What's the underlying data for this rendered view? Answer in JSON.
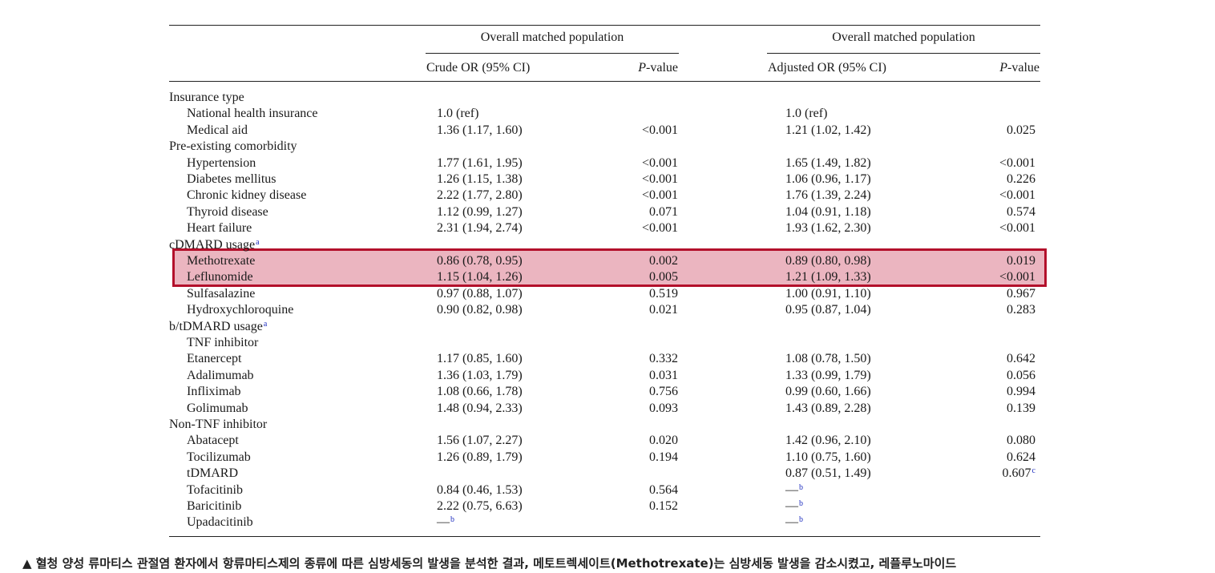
{
  "table": {
    "group_header_left": "Overall matched population",
    "group_header_right": "Overall matched population",
    "col_crude": "Crude OR (95% CI)",
    "col_p_prefix": "P",
    "col_p_suffix": "-value",
    "col_adjusted": "Adjusted OR (95% CI)",
    "rows": [
      {
        "label": "Insurance type",
        "indent": false,
        "crude": "",
        "p1": "",
        "adj": "",
        "p2": ""
      },
      {
        "label": "National health insurance",
        "indent": true,
        "crude": "1.0 (ref)",
        "p1": "",
        "adj": "1.0 (ref)",
        "p2": ""
      },
      {
        "label": "Medical aid",
        "indent": true,
        "crude": "1.36 (1.17, 1.60)",
        "p1": "<0.001",
        "adj": "1.21 (1.02, 1.42)",
        "p2": "0.025"
      },
      {
        "label": "Pre-existing comorbidity",
        "indent": false,
        "crude": "",
        "p1": "",
        "adj": "",
        "p2": ""
      },
      {
        "label": "Hypertension",
        "indent": true,
        "crude": "1.77 (1.61, 1.95)",
        "p1": "<0.001",
        "adj": "1.65 (1.49, 1.82)",
        "p2": "<0.001"
      },
      {
        "label": "Diabetes mellitus",
        "indent": true,
        "crude": "1.26 (1.15, 1.38)",
        "p1": "<0.001",
        "adj": "1.06 (0.96, 1.17)",
        "p2": "0.226"
      },
      {
        "label": "Chronic kidney disease",
        "indent": true,
        "crude": "2.22 (1.77, 2.80)",
        "p1": "<0.001",
        "adj": "1.76 (1.39, 2.24)",
        "p2": "<0.001"
      },
      {
        "label": "Thyroid disease",
        "indent": true,
        "crude": "1.12 (0.99, 1.27)",
        "p1": "0.071",
        "adj": "1.04 (0.91, 1.18)",
        "p2": "0.574"
      },
      {
        "label": "Heart failure",
        "indent": true,
        "crude": "2.31 (1.94, 2.74)",
        "p1": "<0.001",
        "adj": "1.93 (1.62, 2.30)",
        "p2": "<0.001"
      },
      {
        "label": "cDMARD usage",
        "sup": "a",
        "indent": false,
        "crude": "",
        "p1": "",
        "adj": "",
        "p2": ""
      },
      {
        "label": "Methotrexate",
        "indent": true,
        "crude": "0.86 (0.78, 0.95)",
        "p1": "0.002",
        "adj": "0.89 (0.80, 0.98)",
        "p2": "0.019"
      },
      {
        "label": "Leflunomide",
        "indent": true,
        "crude": "1.15 (1.04, 1.26)",
        "p1": "0.005",
        "adj": "1.21 (1.09, 1.33)",
        "p2": "<0.001"
      },
      {
        "label": "Sulfasalazine",
        "indent": true,
        "crude": "0.97 (0.88, 1.07)",
        "p1": "0.519",
        "adj": "1.00 (0.91, 1.10)",
        "p2": "0.967"
      },
      {
        "label": "Hydroxychloroquine",
        "indent": true,
        "crude": "0.90 (0.82, 0.98)",
        "p1": "0.021",
        "adj": "0.95 (0.87, 1.04)",
        "p2": "0.283"
      },
      {
        "label": "b/tDMARD usage",
        "sup": "a",
        "indent": false,
        "crude": "",
        "p1": "",
        "adj": "",
        "p2": ""
      },
      {
        "label": "TNF inhibitor",
        "indent": true,
        "crude": "",
        "p1": "",
        "adj": "",
        "p2": ""
      },
      {
        "label": "Etanercept",
        "indent": true,
        "crude": "1.17 (0.85, 1.60)",
        "p1": "0.332",
        "adj": "1.08 (0.78, 1.50)",
        "p2": "0.642"
      },
      {
        "label": "Adalimumab",
        "indent": true,
        "crude": "1.36 (1.03, 1.79)",
        "p1": "0.031",
        "adj": "1.33 (0.99, 1.79)",
        "p2": "0.056"
      },
      {
        "label": "Infliximab",
        "indent": true,
        "crude": "1.08 (0.66, 1.78)",
        "p1": "0.756",
        "adj": "0.99 (0.60, 1.66)",
        "p2": "0.994"
      },
      {
        "label": "Golimumab",
        "indent": true,
        "crude": "1.48 (0.94, 2.33)",
        "p1": "0.093",
        "adj": "1.43 (0.89, 2.28)",
        "p2": "0.139"
      },
      {
        "label": "Non-TNF inhibitor",
        "indent": false,
        "crude": "",
        "p1": "",
        "adj": "",
        "p2": ""
      },
      {
        "label": "Abatacept",
        "indent": true,
        "crude": "1.56 (1.07, 2.27)",
        "p1": "0.020",
        "adj": "1.42 (0.96, 2.10)",
        "p2": "0.080"
      },
      {
        "label": "Tocilizumab",
        "indent": true,
        "crude": "1.26 (0.89, 1.79)",
        "p1": "0.194",
        "adj": "1.10 (0.75, 1.60)",
        "p2": "0.624"
      },
      {
        "label": "tDMARD",
        "indent": true,
        "crude": "",
        "p1": "",
        "adj": "0.87 (0.51, 1.49)",
        "p2": "0.607",
        "p2_sup": "c"
      },
      {
        "label": "Tofacitinib",
        "indent": true,
        "crude": "0.84 (0.46, 1.53)",
        "p1": "0.564",
        "adj": "—",
        "adj_sup": "b",
        "p2": ""
      },
      {
        "label": "Baricitinib",
        "indent": true,
        "crude": "2.22 (0.75, 6.63)",
        "p1": "0.152",
        "adj": "—",
        "adj_sup": "b",
        "p2": ""
      },
      {
        "label": "Upadacitinib",
        "indent": true,
        "crude": "—",
        "crude_sup": "b",
        "p1": "",
        "adj": "—",
        "adj_sup": "b",
        "p2": ""
      }
    ]
  },
  "caption": "▲ 혈청 양성 류마티스 관절염 환자에서 항류마티스제의 종류에 따른 심방세동의 발생을 분석한 결과, 메토트렉세이트(Methotrexate)는 심방세동 발생을 감소시켰고, 레플루노마이드",
  "colors": {
    "highlight_fill": "#e3a3b1",
    "highlight_border": "#b3102b",
    "superscript": "#2030c0"
  }
}
